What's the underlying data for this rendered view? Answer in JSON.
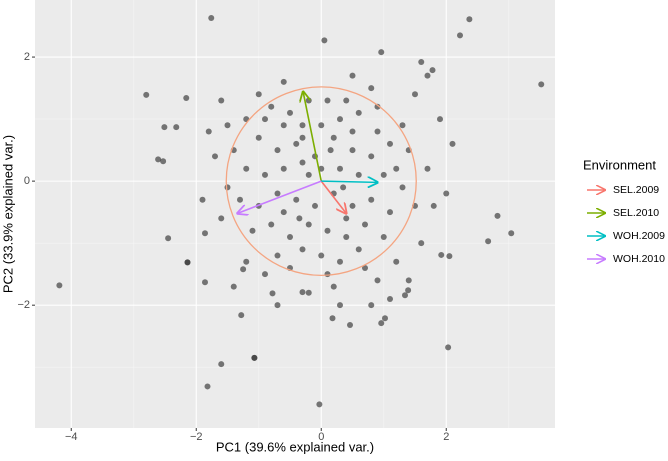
{
  "chart_data": {
    "type": "biplot",
    "x_label": "PC1 (39.6% explained var.)",
    "y_label": "PC2 (33.9% explained var.)",
    "xlim": [
      -4.58,
      3.74
    ],
    "ylim": [
      -3.98,
      2.92
    ],
    "xticks": [
      {
        "value": -4,
        "label": "−4"
      },
      {
        "value": -2,
        "label": "−2"
      },
      0,
      2
    ],
    "yticks": [
      {
        "value": -2,
        "label": "−2"
      },
      0,
      2
    ],
    "x_minor_ticks": [
      -3,
      -1,
      1,
      3
    ],
    "y_minor_ticks": [
      -3,
      -1,
      1
    ],
    "grid": true,
    "circle_radius": 1.52,
    "circle_color": "#F4A582",
    "point_color": "#333333",
    "points": {
      "x": [
        -4.19,
        -1.76,
        2.37,
        2.22,
        3.52,
        0.05,
        0.96,
        -2.8,
        -2.16,
        -2.51,
        -2.32,
        -2.61,
        -2.53,
        -2.45,
        -2.14,
        -2.14,
        -1.86,
        -1.28,
        -1.6,
        -1.82,
        -1.07,
        -1.07,
        -0.03,
        2.03,
        1.6,
        1.78,
        3.04,
        2.82,
        2.67,
        1.92,
        2.05,
        1.39,
        1.34,
        1.02,
        0.96,
        0.46,
        0.18,
        -0.3,
        -0.78,
        -1.25,
        -1.86,
        -0.8,
        -0.5,
        -0.3,
        0.1,
        0.3,
        0.6,
        0.9,
        1.1,
        -1.0,
        -0.7,
        -0.4,
        -0.1,
        0.2,
        0.5,
        0.8,
        1.2,
        -1.2,
        -0.9,
        -0.6,
        -0.2,
        0.3,
        0.6,
        1.0,
        1.3,
        -1.3,
        -1.0,
        -0.7,
        -0.4,
        -0.1,
        0.2,
        0.5,
        0.8,
        1.1,
        -1.1,
        -0.8,
        -0.5,
        -0.2,
        0.1,
        0.4,
        0.7,
        1.0,
        -0.7,
        -0.3,
        0.0,
        0.3,
        0.6,
        -0.9,
        0.0,
        0.4,
        -0.2,
        1.4,
        -1.4,
        1.5,
        -1.5,
        0.7,
        -0.5,
        0.1,
        0.9,
        -1.2,
        1.3,
        -0.6,
        0.5,
        -0.3,
        0.0,
        0.4,
        -0.6,
        1.7,
        1.8,
        1.6,
        -1.6,
        -1.7,
        -1.5,
        1.9,
        2.0,
        1.2,
        -1.2,
        -0.9,
        0.9,
        0.2,
        -0.2,
        0.5,
        -0.6,
        -1.9,
        -1.8,
        1.5,
        1.7,
        0.8,
        -1.0,
        -1.6,
        2.1,
        1.4,
        -1.4,
        0.3,
        -0.7,
        0.8,
        1.1,
        -0.3,
        0.15,
        0.35,
        -0.35
      ],
      "y": [
        -1.68,
        2.63,
        2.61,
        2.35,
        1.56,
        2.27,
        2.08,
        1.39,
        1.34,
        0.87,
        0.87,
        0.35,
        0.32,
        -0.92,
        -1.31,
        -1.31,
        -1.63,
        -2.16,
        -2.95,
        -3.31,
        -2.85,
        -2.85,
        -3.6,
        -2.68,
        1.92,
        1.79,
        -0.84,
        -0.56,
        -0.97,
        -1.19,
        -1.21,
        -1.76,
        -1.84,
        -2.21,
        -2.29,
        -2.32,
        -2.21,
        -1.79,
        -1.81,
        -1.42,
        -0.84,
        1.2,
        1.1,
        0.9,
        1.3,
        1.0,
        1.1,
        0.8,
        0.6,
        0.7,
        0.5,
        0.6,
        0.4,
        0.7,
        0.5,
        0.4,
        0.2,
        0.2,
        0.1,
        0.2,
        0.1,
        0.2,
        0.1,
        0.1,
        -0.1,
        -0.3,
        -0.4,
        -0.2,
        -0.3,
        -0.4,
        -0.2,
        -0.4,
        -0.3,
        -0.5,
        -0.8,
        -0.7,
        -0.9,
        -0.7,
        -0.8,
        -0.9,
        -0.7,
        -0.9,
        -1.2,
        -1.1,
        -1.2,
        -1.3,
        -1.1,
        1.0,
        0.9,
        1.3,
        1.3,
        0.5,
        0.5,
        -0.4,
        -0.1,
        -1.4,
        -1.4,
        -1.5,
        1.2,
        1.0,
        0.9,
        0.9,
        0.8,
        0.3,
        0.2,
        -0.6,
        -0.5,
        0.2,
        -0.4,
        -1.0,
        -0.6,
        0.4,
        0.9,
        1.0,
        -0.2,
        -1.3,
        -1.3,
        -1.5,
        -1.6,
        -1.7,
        -1.8,
        1.7,
        1.6,
        -0.3,
        0.8,
        1.4,
        1.7,
        1.5,
        1.4,
        1.3,
        0.6,
        -1.6,
        -1.7,
        -2.0,
        -2.0,
        -2.0,
        -1.9,
        0.7,
        0.5,
        -0.1,
        -0.6
      ]
    },
    "legend_title": "Environment",
    "series": [
      {
        "name": "SEL.2009",
        "color": "#F8766D",
        "x": 0.4,
        "y": -0.52
      },
      {
        "name": "SEL.2010",
        "color": "#7CAE00",
        "x": -0.29,
        "y": 1.44
      },
      {
        "name": "WOH.2009",
        "color": "#00BFC4",
        "x": 0.9,
        "y": -0.02
      },
      {
        "name": "WOH.2010",
        "color": "#C77CFF",
        "x": -1.34,
        "y": -0.52
      }
    ]
  }
}
